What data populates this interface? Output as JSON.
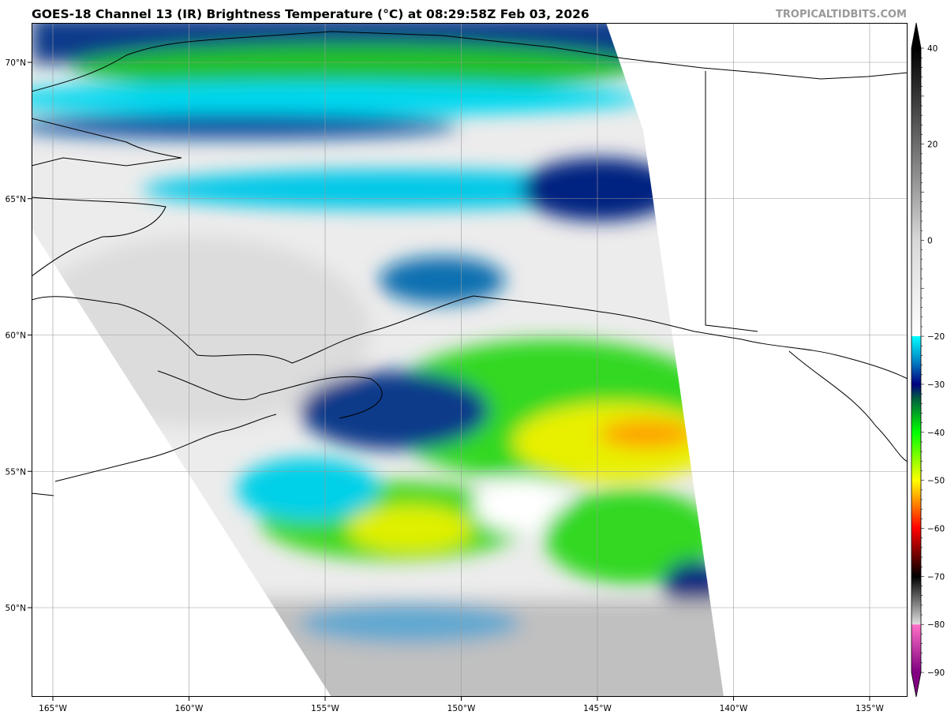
{
  "header": {
    "title": "GOES-18 Channel 13 (IR) Brightness Temperature (°C) at 08:29:58Z Feb 03, 2026",
    "credit": "TROPICALTIDBITS.COM"
  },
  "map": {
    "region": "Alaska / Gulf of Alaska",
    "longitude_ticks": [
      -165,
      -160,
      -155,
      -150,
      -145,
      -140,
      -135
    ],
    "longitude_labels": [
      "165°W",
      "160°W",
      "155°W",
      "150°W",
      "145°W",
      "140°W",
      "135°W"
    ],
    "latitude_ticks": [
      70,
      65,
      60,
      55,
      50
    ],
    "latitude_labels": [
      "70°N",
      "65°N",
      "60°N",
      "55°N",
      "50°N"
    ],
    "gridlines": true
  },
  "colorbar": {
    "ticks": [
      40,
      20,
      0,
      -20,
      -30,
      -40,
      -50,
      -60,
      -70,
      -80,
      -90
    ],
    "labels": [
      "40",
      "20",
      "0",
      "−20",
      "−30",
      "−40",
      "−50",
      "−60",
      "−70",
      "−80",
      "−90"
    ],
    "stops": [
      {
        "value": 40,
        "color": "#000000"
      },
      {
        "value": 0,
        "color": "#d8d8d8"
      },
      {
        "value": -20,
        "color": "#ffffff"
      },
      {
        "value": -20.01,
        "color": "#00ffff"
      },
      {
        "value": -25,
        "color": "#0088c8"
      },
      {
        "value": -30,
        "color": "#000080"
      },
      {
        "value": -33,
        "color": "#006040"
      },
      {
        "value": -40,
        "color": "#00ff00"
      },
      {
        "value": -50,
        "color": "#ffff00"
      },
      {
        "value": -55,
        "color": "#ff8000"
      },
      {
        "value": -60,
        "color": "#ff0000"
      },
      {
        "value": -70,
        "color": "#000000"
      },
      {
        "value": -80,
        "color": "#e0e0e0"
      },
      {
        "value": -80.01,
        "color": "#ff70c8"
      },
      {
        "value": -90,
        "color": "#800080"
      }
    ]
  }
}
